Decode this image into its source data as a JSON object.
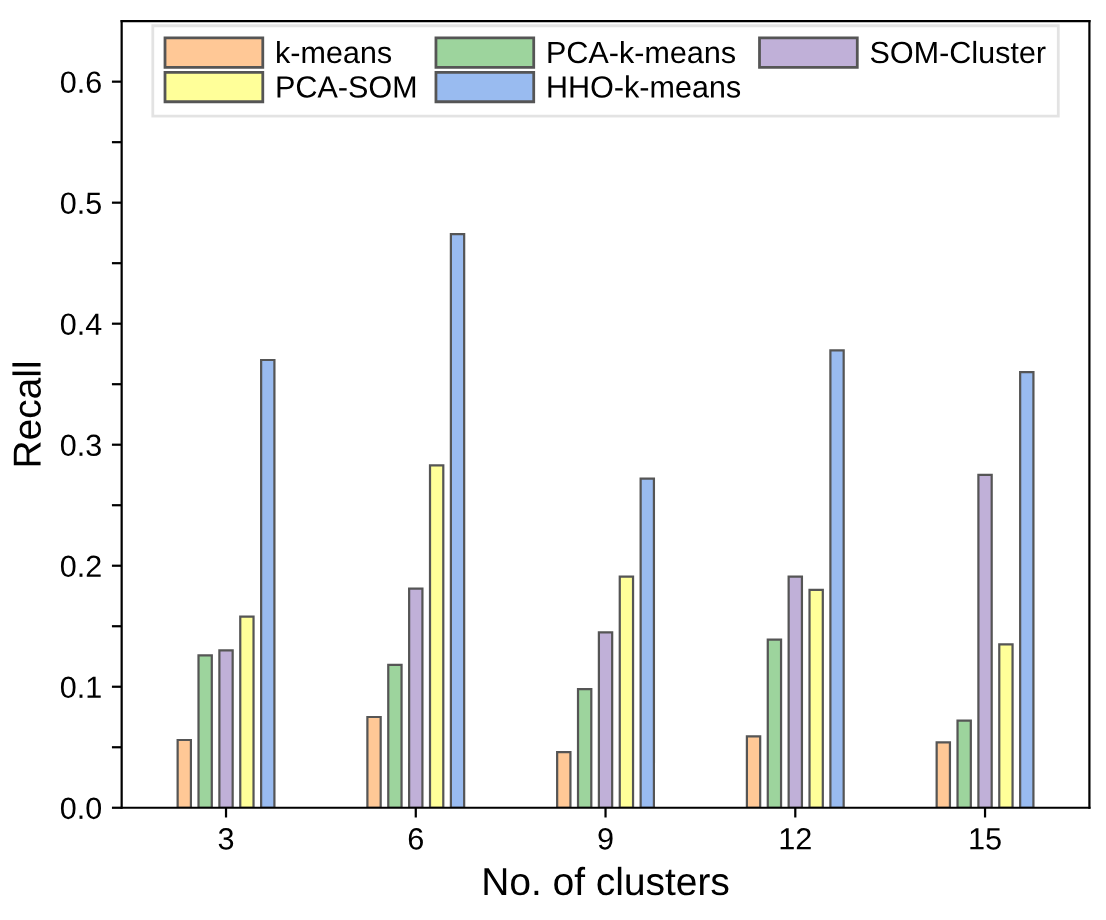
{
  "chart_data": {
    "type": "bar",
    "xlabel": "No. of clusters",
    "ylabel": "Recall",
    "categories": [
      "3",
      "6",
      "9",
      "12",
      "15"
    ],
    "series": [
      {
        "name": "k-means",
        "color": "#ffc896",
        "values": [
          0.056,
          0.075,
          0.046,
          0.059,
          0.054
        ]
      },
      {
        "name": "PCA-k-means",
        "color": "#9dd49d",
        "values": [
          0.126,
          0.118,
          0.098,
          0.139,
          0.072
        ]
      },
      {
        "name": "SOM-Cluster",
        "color": "#c0b0d8",
        "values": [
          0.13,
          0.181,
          0.145,
          0.191,
          0.275
        ]
      },
      {
        "name": "PCA-SOM",
        "color": "#ffff99",
        "values": [
          0.158,
          0.283,
          0.191,
          0.18,
          0.135
        ]
      },
      {
        "name": "HHO-k-means",
        "color": "#99bbf0",
        "values": [
          0.37,
          0.474,
          0.272,
          0.378,
          0.36
        ]
      }
    ],
    "ylim": [
      0,
      0.65
    ],
    "yticks": [
      {
        "value": 0,
        "label": "0.0"
      },
      {
        "value": 0.05,
        "label": null
      },
      0.1,
      {
        "value": 0.15,
        "label": null
      },
      0.2,
      {
        "value": 0.25,
        "label": null
      },
      0.3,
      {
        "value": 0.35,
        "label": null
      },
      0.4,
      {
        "value": 0.45,
        "label": null
      },
      0.5,
      {
        "value": 0.55,
        "label": null
      },
      0.6
    ],
    "legend": "top",
    "grid": false
  }
}
